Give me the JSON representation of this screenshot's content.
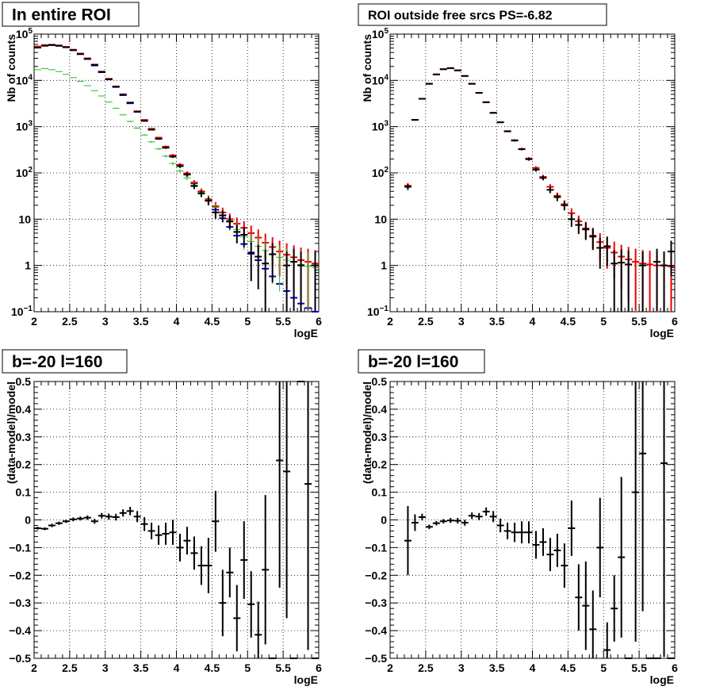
{
  "chart_data": [
    {
      "type": "scatter",
      "title": "In entire ROI",
      "xlabel": "logE",
      "ylabel": "Nb of counts",
      "xlim": [
        2,
        6
      ],
      "ylim": [
        0.1,
        100000
      ],
      "yscale": "log",
      "grid": true,
      "xticks": [
        "2",
        "2.5",
        "3",
        "3.5",
        "4",
        "4.5",
        "5",
        "5.5",
        "6"
      ],
      "yticks": [
        {
          "v": 0.1,
          "b": "10",
          "e": "−1"
        },
        {
          "v": 1,
          "b": "1",
          "e": ""
        },
        {
          "v": 10,
          "b": "10",
          "e": ""
        },
        {
          "v": 100,
          "b": "10",
          "e": "2"
        },
        {
          "v": 1000,
          "b": "10",
          "e": "3"
        },
        {
          "v": 10000,
          "b": "10",
          "e": "4"
        },
        {
          "v": 100000,
          "b": "10",
          "e": "5"
        }
      ],
      "binwidth": 0.1,
      "series": [
        {
          "color": "#0000cc",
          "markers": "hbar",
          "x": [
            2.05,
            2.15,
            2.25,
            2.35,
            2.45,
            2.55,
            2.65,
            2.75,
            2.85,
            2.95,
            3.05,
            3.15,
            3.25,
            3.35,
            3.45,
            3.55,
            3.65,
            3.75,
            3.85,
            3.95,
            4.05,
            4.15,
            4.25,
            4.35,
            4.45,
            4.55,
            4.65,
            4.75,
            4.85,
            4.95,
            5.05,
            5.15,
            5.25,
            5.35,
            5.45,
            5.55,
            5.65,
            5.75,
            5.85,
            5.95
          ],
          "y": [
            52000,
            57000,
            58000,
            56000,
            52000,
            45000,
            37000,
            29000,
            21000,
            15000,
            10500,
            7200,
            4800,
            3200,
            2100,
            1350,
            870,
            560,
            360,
            230,
            148,
            95,
            60,
            39,
            25,
            16,
            10.5,
            6.8,
            4.4,
            2.9,
            1.9,
            1.3,
            0.85,
            0.58,
            0.4,
            0.28,
            0.2,
            0.15,
            0.12,
            0.1
          ]
        },
        {
          "color": "#ee0000",
          "markers": "cross",
          "x": [
            2.05,
            2.15,
            2.25,
            2.35,
            2.45,
            2.55,
            2.65,
            2.75,
            2.85,
            2.95,
            3.05,
            3.15,
            3.25,
            3.35,
            3.45,
            3.55,
            3.65,
            3.75,
            3.85,
            3.95,
            4.05,
            4.15,
            4.25,
            4.35,
            4.45,
            4.55,
            4.65,
            4.75,
            4.85,
            4.95,
            5.05,
            5.15,
            5.25,
            5.35,
            5.45,
            5.55,
            5.65,
            5.75,
            5.85,
            5.95
          ],
          "y": [
            54000,
            58000,
            59000,
            57000,
            53000,
            46000,
            38000,
            30000,
            22000,
            15500,
            10800,
            7400,
            5000,
            3300,
            2150,
            1400,
            900,
            580,
            370,
            240,
            150,
            98,
            62,
            40,
            27,
            19,
            14,
            10,
            8,
            6.5,
            5,
            4,
            3.1,
            2.5,
            2,
            1.7,
            1.5,
            1.3,
            1.2,
            1.1
          ]
        },
        {
          "color": "#22bb22",
          "markers": "cross",
          "x": [
            2.05,
            2.15,
            2.25,
            2.35,
            2.45,
            2.55,
            2.65,
            2.75,
            2.85,
            2.95,
            3.05,
            3.15,
            3.25,
            3.35,
            3.45,
            3.55,
            3.65,
            3.75,
            3.85,
            3.95,
            4.05,
            4.15,
            4.25,
            4.35,
            4.45,
            4.55,
            4.65,
            4.75,
            4.85,
            4.95,
            5.05,
            5.15,
            5.25,
            5.35,
            5.45,
            5.55,
            5.65,
            5.75,
            5.85,
            5.95
          ],
          "y": [
            17000,
            18000,
            17000,
            15500,
            13500,
            11500,
            9500,
            7700,
            6000,
            4600,
            3400,
            2500,
            1800,
            1300,
            930,
            660,
            470,
            330,
            230,
            160,
            110,
            78,
            55,
            38,
            26,
            18,
            12.5,
            8.6,
            6,
            4.2,
            3.3,
            2.6,
            2.1,
            1.7,
            1.5,
            1.3,
            1.2,
            1.05,
            0.95,
            0.9
          ]
        },
        {
          "color": "#000000",
          "markers": "cross",
          "x": [
            2.05,
            2.15,
            2.25,
            2.35,
            2.45,
            2.55,
            2.65,
            2.75,
            2.85,
            2.95,
            3.05,
            3.15,
            3.25,
            3.35,
            3.45,
            3.55,
            3.65,
            3.75,
            3.85,
            3.95,
            4.05,
            4.15,
            4.25,
            4.35,
            4.45,
            4.55,
            4.65,
            4.75,
            4.85,
            4.95,
            5.05,
            5.15,
            5.25,
            5.35,
            5.45,
            5.55,
            5.65,
            5.75,
            5.85,
            5.95
          ],
          "y": [
            51000,
            56000,
            58000,
            56000,
            52000,
            45000,
            37000,
            29000,
            21500,
            15200,
            10600,
            7300,
            4900,
            3300,
            2100,
            1330,
            860,
            545,
            350,
            225,
            140,
            92,
            52,
            36,
            25,
            14,
            12,
            9,
            5.3,
            4.6,
            1.8,
            1.55,
            1.1,
            1.75,
            0,
            1,
            1.2,
            1,
            0,
            1
          ]
        }
      ]
    },
    {
      "type": "scatter",
      "title": "ROI outside free srcs PS=-6.82",
      "xlabel": "logE",
      "ylabel": "Nb of counts",
      "xlim": [
        2,
        6
      ],
      "ylim": [
        0.1,
        100000
      ],
      "yscale": "log",
      "grid": true,
      "xticks": [
        "2",
        "2.5",
        "3",
        "3.5",
        "4",
        "4.5",
        "5",
        "5.5",
        "6"
      ],
      "yticks": [
        {
          "v": 0.1,
          "b": "10",
          "e": "−1"
        },
        {
          "v": 1,
          "b": "1",
          "e": ""
        },
        {
          "v": 10,
          "b": "10",
          "e": ""
        },
        {
          "v": 100,
          "b": "10",
          "e": "2"
        },
        {
          "v": 1000,
          "b": "10",
          "e": "3"
        },
        {
          "v": 10000,
          "b": "10",
          "e": "4"
        },
        {
          "v": 100000,
          "b": "10",
          "e": "5"
        }
      ],
      "binwidth": 0.1,
      "series": [
        {
          "color": "#ee0000",
          "markers": "cross",
          "x": [
            2.25,
            2.35,
            2.45,
            2.55,
            2.65,
            2.75,
            2.85,
            2.95,
            3.05,
            3.15,
            3.25,
            3.35,
            3.45,
            3.55,
            3.65,
            3.75,
            3.85,
            3.95,
            4.05,
            4.15,
            4.25,
            4.35,
            4.45,
            4.55,
            4.65,
            4.75,
            4.85,
            4.95,
            5.05,
            5.15,
            5.25,
            5.35,
            5.45,
            5.55,
            5.65,
            5.75,
            5.85,
            5.95
          ],
          "y": [
            53,
            1400,
            4000,
            8500,
            13500,
            17500,
            18500,
            16500,
            12500,
            8500,
            5400,
            3400,
            2000,
            1250,
            800,
            510,
            330,
            205,
            128,
            82,
            50,
            32,
            21,
            13.5,
            9,
            6.3,
            4.4,
            3.2,
            2.4,
            1.9,
            1.55,
            1.35,
            1.2,
            1.1,
            1.05,
            1,
            1,
            0.95
          ]
        },
        {
          "color": "#000000",
          "markers": "cross",
          "x": [
            2.25,
            2.35,
            2.45,
            2.55,
            2.65,
            2.75,
            2.85,
            2.95,
            3.05,
            3.15,
            3.25,
            3.35,
            3.45,
            3.55,
            3.65,
            3.75,
            3.85,
            3.95,
            4.05,
            4.15,
            4.25,
            4.35,
            4.45,
            4.55,
            4.65,
            4.75,
            4.85,
            4.95,
            5.05,
            5.15,
            5.25,
            5.35,
            5.45,
            5.55,
            5.65,
            5.75,
            5.85,
            5.95
          ],
          "y": [
            50,
            1400,
            4000,
            8400,
            13400,
            17400,
            18300,
            16400,
            12400,
            8400,
            5350,
            3350,
            1980,
            1240,
            790,
            500,
            325,
            198,
            118,
            78,
            43,
            30,
            20,
            10,
            7.5,
            6,
            4.2,
            2.4,
            2.6,
            1.1,
            1.15,
            1.05,
            0,
            1,
            0,
            1.2,
            1,
            2
          ]
        }
      ]
    },
    {
      "type": "scatter",
      "title": "b=-20 l=160",
      "xlabel": "logE",
      "ylabel": "(data-model)/model",
      "xlim": [
        2,
        6
      ],
      "ylim": [
        -0.5,
        0.5
      ],
      "grid": true,
      "xticks": [
        "2",
        "2.5",
        "3",
        "3.5",
        "4",
        "4.5",
        "5",
        "5.5",
        "6"
      ],
      "yticks": [
        {
          "v": -0.5,
          "b": "−0.5",
          "e": ""
        },
        {
          "v": -0.4,
          "b": "−0.4",
          "e": ""
        },
        {
          "v": -0.3,
          "b": "−0.3",
          "e": ""
        },
        {
          "v": -0.2,
          "b": "−0.2",
          "e": ""
        },
        {
          "v": -0.1,
          "b": "−0.1",
          "e": ""
        },
        {
          "v": 0,
          "b": "0",
          "e": ""
        },
        {
          "v": 0.1,
          "b": "0.1",
          "e": ""
        },
        {
          "v": 0.2,
          "b": "0.2",
          "e": ""
        },
        {
          "v": 0.3,
          "b": "0.3",
          "e": ""
        },
        {
          "v": 0.4,
          "b": "0.4",
          "e": ""
        },
        {
          "v": 0.5,
          "b": "0.5",
          "e": ""
        }
      ],
      "binwidth": 0.1,
      "series": [
        {
          "color": "#000000",
          "markers": "cross",
          "x": [
            2.05,
            2.15,
            2.25,
            2.35,
            2.45,
            2.55,
            2.65,
            2.75,
            2.85,
            2.95,
            3.05,
            3.15,
            3.25,
            3.35,
            3.45,
            3.55,
            3.65,
            3.75,
            3.85,
            3.95,
            4.05,
            4.15,
            4.25,
            4.35,
            4.45,
            4.55,
            4.65,
            4.75,
            4.85,
            4.95,
            5.05,
            5.15,
            5.25,
            5.35,
            5.45,
            5.55,
            5.65,
            5.75,
            5.85,
            5.95
          ],
          "y": [
            -0.03,
            -0.032,
            -0.02,
            -0.012,
            -0.005,
            0.002,
            0.005,
            0.008,
            -0.005,
            0.015,
            0.012,
            0.01,
            0.025,
            0.032,
            0.012,
            -0.015,
            -0.04,
            -0.055,
            -0.05,
            -0.045,
            -0.1,
            -0.075,
            -0.12,
            -0.165,
            -0.165,
            -0.005,
            -0.3,
            -0.19,
            -0.355,
            -0.145,
            -0.305,
            -0.415,
            -0.18,
            -0.5,
            0.215,
            0.175,
            -0.5,
            0.5,
            0.13,
            -0.5
          ],
          "err": [
            0.005,
            0.005,
            0.006,
            0.006,
            0.006,
            0.007,
            0.007,
            0.008,
            0.009,
            0.01,
            0.011,
            0.012,
            0.013,
            0.015,
            0.02,
            0.025,
            0.03,
            0.035,
            0.04,
            0.045,
            0.05,
            0.05,
            0.06,
            0.07,
            0.1,
            0.11,
            0.12,
            0.09,
            0.12,
            0.14,
            0.12,
            0.12,
            0.27,
            0,
            0.46,
            0.53,
            0,
            0,
            0.6,
            0
          ]
        }
      ]
    },
    {
      "type": "scatter",
      "title": "b=-20 l=160",
      "xlabel": "logE",
      "ylabel": "(data-model)/model",
      "xlim": [
        2,
        6
      ],
      "ylim": [
        -0.5,
        0.5
      ],
      "grid": true,
      "xticks": [
        "2",
        "2.5",
        "3",
        "3.5",
        "4",
        "4.5",
        "5",
        "5.5",
        "6"
      ],
      "yticks": [
        {
          "v": -0.5,
          "b": "−0.5",
          "e": ""
        },
        {
          "v": -0.4,
          "b": "−0.4",
          "e": ""
        },
        {
          "v": -0.3,
          "b": "−0.3",
          "e": ""
        },
        {
          "v": -0.2,
          "b": "−0.2",
          "e": ""
        },
        {
          "v": -0.1,
          "b": "−0.1",
          "e": ""
        },
        {
          "v": 0,
          "b": "0",
          "e": ""
        },
        {
          "v": 0.1,
          "b": "0.1",
          "e": ""
        },
        {
          "v": 0.2,
          "b": "0.2",
          "e": ""
        },
        {
          "v": 0.3,
          "b": "0.3",
          "e": ""
        },
        {
          "v": 0.4,
          "b": "0.4",
          "e": ""
        },
        {
          "v": 0.5,
          "b": "0.5",
          "e": ""
        }
      ],
      "binwidth": 0.1,
      "series": [
        {
          "color": "#000000",
          "markers": "cross",
          "x": [
            2.25,
            2.35,
            2.45,
            2.55,
            2.65,
            2.75,
            2.85,
            2.95,
            3.05,
            3.15,
            3.25,
            3.35,
            3.45,
            3.55,
            3.65,
            3.75,
            3.85,
            3.95,
            4.05,
            4.15,
            4.25,
            4.35,
            4.45,
            4.55,
            4.65,
            4.75,
            4.85,
            4.95,
            5.05,
            5.15,
            5.25,
            5.35,
            5.45,
            5.55,
            5.65,
            5.75,
            5.85,
            5.95
          ],
          "y": [
            -0.075,
            -0.01,
            0.01,
            -0.025,
            -0.012,
            -0.005,
            -0.002,
            -0.003,
            -0.01,
            0.015,
            0.012,
            0.03,
            0.012,
            -0.02,
            -0.04,
            -0.045,
            -0.045,
            -0.045,
            -0.09,
            -0.08,
            -0.125,
            -0.11,
            -0.165,
            -0.03,
            -0.28,
            -0.31,
            -0.395,
            -0.1,
            -0.47,
            -0.32,
            -0.135,
            -0.5,
            0.1,
            0.24,
            -0.5,
            -0.5,
            0.205,
            -0.5
          ],
          "err": [
            0.125,
            0.03,
            0.012,
            0.008,
            0.008,
            0.008,
            0.009,
            0.01,
            0.011,
            0.012,
            0.013,
            0.015,
            0.02,
            0.025,
            0.03,
            0.035,
            0.04,
            0.04,
            0.05,
            0.05,
            0.06,
            0.06,
            0.08,
            0.1,
            0.12,
            0.16,
            0.14,
            0.18,
            0.1,
            0.12,
            0.29,
            0,
            0.54,
            0.57,
            0,
            0,
            0.7,
            0
          ]
        }
      ]
    }
  ]
}
